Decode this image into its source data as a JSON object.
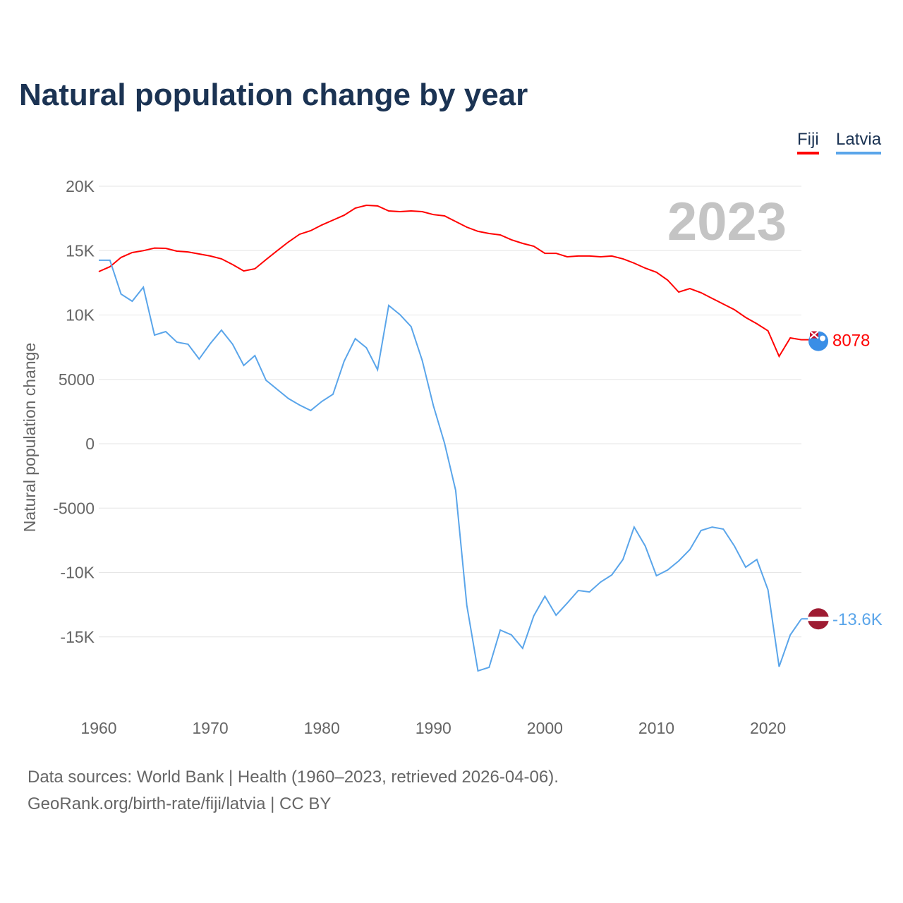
{
  "chart_data": {
    "type": "line",
    "title": "Natural population change by year",
    "xlabel": "",
    "ylabel": "Natural population change",
    "ylim": [
      -20000,
      20000
    ],
    "xlim": [
      1960,
      2023
    ],
    "yticks": [
      20000,
      15000,
      10000,
      5000,
      0,
      -5000,
      -10000,
      -15000
    ],
    "ytick_labels": [
      "20K",
      "15K",
      "10K",
      "5000",
      "0",
      "-5000",
      "-10K",
      "-15K"
    ],
    "xticks": [
      1960,
      1970,
      1980,
      1990,
      2000,
      2010,
      2020
    ],
    "xtick_labels": [
      "1960",
      "1970",
      "1980",
      "1990",
      "2000",
      "2010",
      "2020"
    ],
    "grid": true,
    "legend_position": "top-right",
    "year_label": "2023",
    "x": [
      1960,
      1961,
      1962,
      1963,
      1964,
      1965,
      1966,
      1967,
      1968,
      1969,
      1970,
      1971,
      1972,
      1973,
      1974,
      1975,
      1976,
      1977,
      1978,
      1979,
      1980,
      1981,
      1982,
      1983,
      1984,
      1985,
      1986,
      1987,
      1988,
      1989,
      1990,
      1991,
      1992,
      1993,
      1994,
      1995,
      1996,
      1997,
      1998,
      1999,
      2000,
      2001,
      2002,
      2003,
      2004,
      2005,
      2006,
      2007,
      2008,
      2009,
      2010,
      2011,
      2012,
      2013,
      2014,
      2015,
      2016,
      2017,
      2018,
      2019,
      2020,
      2021,
      2022,
      2023
    ],
    "series": [
      {
        "name": "Fiji",
        "color": "#ff0000",
        "end_label": "8078",
        "values": [
          13370,
          13750,
          14470,
          14850,
          15000,
          15200,
          15180,
          14960,
          14900,
          14740,
          14580,
          14360,
          13920,
          13420,
          13590,
          14300,
          15000,
          15670,
          16270,
          16550,
          16990,
          17370,
          17750,
          18300,
          18520,
          18470,
          18080,
          18030,
          18080,
          18030,
          17800,
          17700,
          17260,
          16820,
          16500,
          16330,
          16220,
          15840,
          15560,
          15340,
          14790,
          14790,
          14520,
          14580,
          14580,
          14520,
          14580,
          14360,
          14030,
          13640,
          13320,
          12710,
          11780,
          12050,
          11730,
          11290,
          10850,
          10410,
          9810,
          9320,
          8770,
          6790,
          8220,
          8078
        ]
      },
      {
        "name": "Latvia",
        "color": "#5aa5ea",
        "end_label": "-13.6K",
        "values": [
          14250,
          14250,
          11620,
          11070,
          12160,
          8440,
          8710,
          7890,
          7730,
          6580,
          7780,
          8820,
          7730,
          6080,
          6850,
          4930,
          4220,
          3510,
          3010,
          2580,
          3290,
          3840,
          6410,
          8160,
          7450,
          5750,
          10740,
          10030,
          9100,
          6470,
          2960,
          50,
          -3620,
          -12550,
          -17640,
          -17370,
          -14470,
          -14850,
          -15890,
          -13370,
          -11840,
          -13320,
          -12380,
          -11400,
          -11510,
          -10740,
          -10190,
          -8990,
          -6470,
          -7950,
          -10250,
          -9810,
          -9100,
          -8220,
          -6740,
          -6470,
          -6630,
          -7950,
          -9590,
          -8990,
          -11340,
          -17320,
          -14850,
          -13600
        ]
      }
    ]
  },
  "footer": {
    "line1": "Data sources: World Bank | Health (1960–2023, retrieved 2026-04-06).",
    "line2": "GeoRank.org/birth-rate/fiji/latvia | CC BY"
  }
}
